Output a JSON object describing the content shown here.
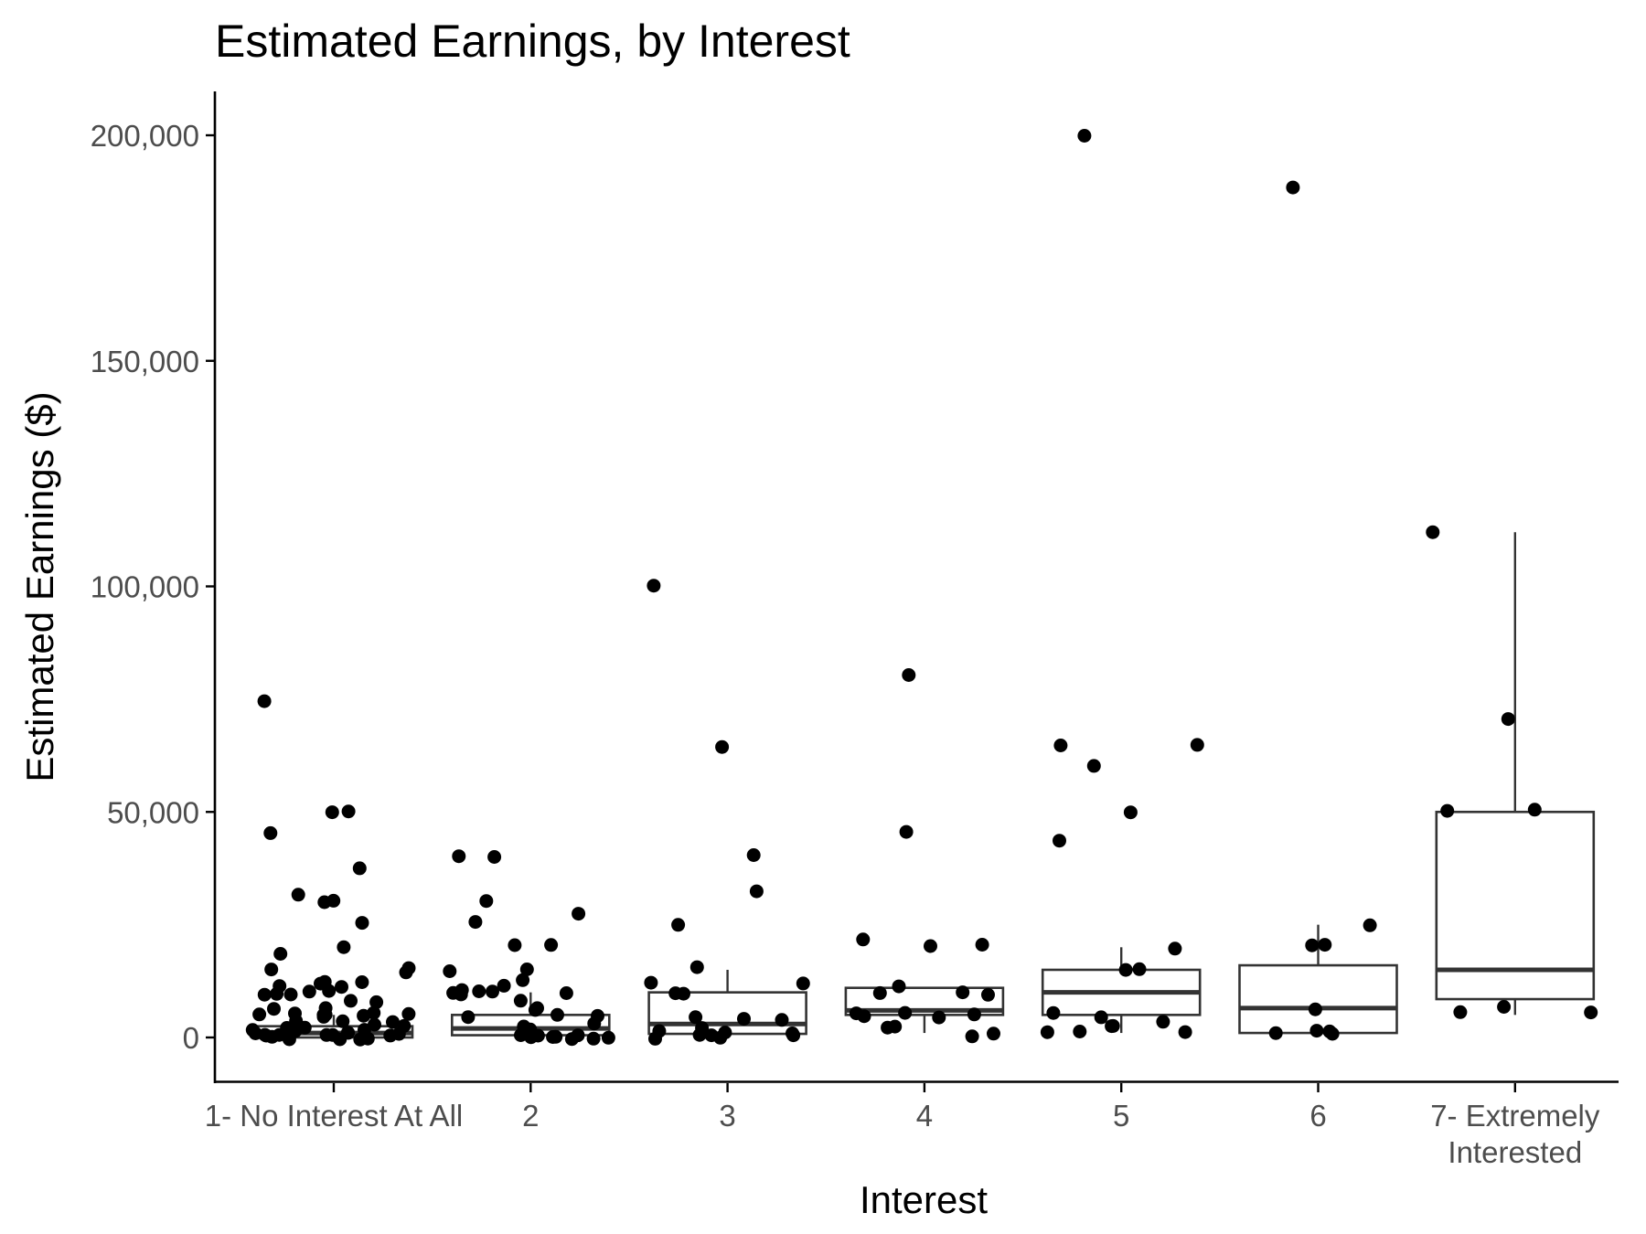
{
  "chart_data": {
    "type": "box",
    "title": "Estimated Earnings, by Interest",
    "xlabel": "Interest",
    "ylabel": "Estimated Earnings ($)",
    "categories": [
      [
        "1- No Interest At All"
      ],
      [
        "2"
      ],
      [
        "3"
      ],
      [
        "4"
      ],
      [
        "5"
      ],
      [
        "6"
      ],
      [
        "7- Extremely",
        "Interested"
      ]
    ],
    "yticks": [
      0,
      50000,
      100000,
      150000,
      200000
    ],
    "ytick_labels": [
      "0",
      "50,000",
      "100,000",
      "150,000",
      "200,000"
    ],
    "ylim": [
      -10000,
      210000
    ],
    "grid": false,
    "legend": "none",
    "boxes": [
      {
        "category": "1- No Interest At All",
        "min": 0,
        "q1": 0,
        "median": 1000,
        "q3": 2500,
        "max": 5000
      },
      {
        "category": "2",
        "min": 0,
        "q1": 500,
        "median": 2000,
        "q3": 5000,
        "max": 10000
      },
      {
        "category": "3",
        "min": 0,
        "q1": 800,
        "median": 3000,
        "q3": 10000,
        "max": 15000
      },
      {
        "category": "4",
        "min": 1000,
        "q1": 5000,
        "median": 6000,
        "q3": 11000,
        "max": 11000
      },
      {
        "category": "5",
        "min": 1000,
        "q1": 5000,
        "median": 10000,
        "q3": 15000,
        "max": 20000
      },
      {
        "category": "6",
        "min": 1000,
        "q1": 1000,
        "median": 6500,
        "q3": 16000,
        "max": 25000
      },
      {
        "category": "7- Extremely Interested",
        "min": 5000,
        "q1": 8500,
        "median": 15000,
        "q3": 50000,
        "max": 112000
      }
    ],
    "points": [
      {
        "category": "1- No Interest At All",
        "values": [
          50000,
          45000,
          30000,
          75000,
          50000,
          32000,
          37000,
          30000,
          25000,
          20000,
          18000,
          15000,
          15000,
          15000,
          12000,
          12000,
          12000,
          12000,
          11000,
          10000,
          10000,
          10000,
          10000,
          10000,
          8000,
          8000,
          6000,
          6000,
          5000,
          5000,
          5000,
          5000,
          5000,
          5000,
          5000,
          5000,
          4000,
          4000,
          3000,
          3000,
          3000,
          2000,
          2000,
          2000,
          2000,
          1500,
          1000,
          1000,
          1000,
          1000,
          500,
          500,
          500,
          0,
          0,
          0,
          0,
          0,
          0,
          0,
          0
        ]
      },
      {
        "category": "2",
        "values": [
          40000,
          40000,
          30000,
          27000,
          25000,
          20000,
          20000,
          15000,
          15000,
          13000,
          12000,
          10000,
          10000,
          10000,
          10000,
          10000,
          10000,
          8000,
          7000,
          6000,
          5000,
          5000,
          5000,
          3000,
          3000,
          2000,
          1000,
          1000,
          500,
          0,
          0,
          0,
          0,
          0,
          0
        ]
      },
      {
        "category": "3",
        "values": [
          100000,
          65000,
          40000,
          32000,
          25000,
          15000,
          12000,
          12000,
          10000,
          10000,
          5000,
          4000,
          3500,
          2000,
          1000,
          1000,
          800,
          500,
          0,
          0,
          0,
          0
        ]
      },
      {
        "category": "4",
        "values": [
          80000,
          45000,
          22000,
          20000,
          20000,
          11000,
          10000,
          10000,
          10000,
          6000,
          5000,
          5000,
          5000,
          5000,
          2000,
          2000,
          1000,
          500
        ]
      },
      {
        "category": "5",
        "values": [
          200000,
          65000,
          65000,
          60000,
          50000,
          43500,
          20000,
          15000,
          15000,
          5000,
          5000,
          4000,
          3000,
          2000,
          1000,
          1000,
          1000
        ]
      },
      {
        "category": "6",
        "values": [
          189000,
          25000,
          20000,
          20000,
          6000,
          1000,
          1000,
          1000,
          1000
        ]
      },
      {
        "category": "7- Extremely Interested",
        "values": [
          112000,
          70000,
          50000,
          50000,
          7000,
          6000,
          5000
        ]
      }
    ]
  }
}
